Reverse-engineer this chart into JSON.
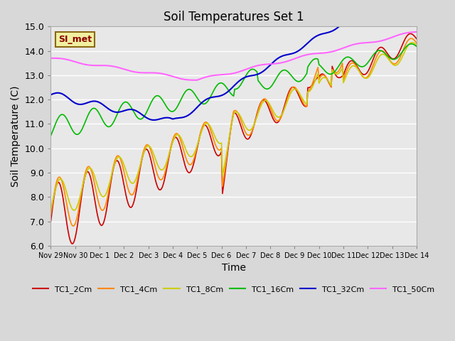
{
  "title": "Soil Temperatures Set 1",
  "xlabel": "Time",
  "ylabel": "Soil Temperature (C)",
  "ylim": [
    6.0,
    15.0
  ],
  "yticks": [
    6.0,
    7.0,
    8.0,
    9.0,
    10.0,
    11.0,
    12.0,
    13.0,
    14.0,
    15.0
  ],
  "background_color": "#d8d8d8",
  "plot_bg_color": "#e8e8e8",
  "legend_label": "SI_met",
  "series_colors": {
    "TC1_2Cm": "#cc0000",
    "TC1_4Cm": "#ff8800",
    "TC1_8Cm": "#cccc00",
    "TC1_16Cm": "#00bb00",
    "TC1_32Cm": "#0000cc",
    "TC1_50Cm": "#ff66ff"
  },
  "n_points": 361,
  "xtick_labels": [
    "Nov 29",
    "Nov 30",
    "Dec 1",
    "Dec 2",
    "Dec 3",
    "Dec 4",
    "Dec 5",
    "Dec 6",
    "Dec 7",
    "Dec 8",
    "Dec 9",
    "Dec 10",
    "Dec 11",
    "Dec 12",
    "Dec 13",
    "Dec 14"
  ],
  "xtick_positions": [
    0.0,
    1.0,
    2.0,
    3.0,
    4.0,
    5.0,
    6.0,
    7.0,
    8.0,
    9.0,
    10.0,
    11.0,
    12.0,
    13.0,
    14.0,
    15.0
  ]
}
